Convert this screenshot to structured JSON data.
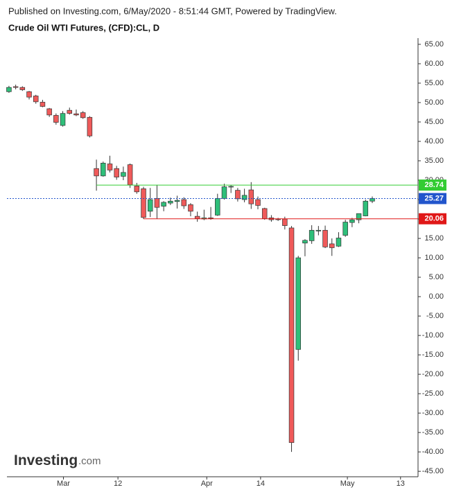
{
  "chart_data": {
    "type": "candlestick",
    "subtitle": "Published on Investing.com, 6/May/2020 - 8:51:44 GMT, Powered by TradingView.",
    "title": "Crude Oil WTI Futures, (CFD):CL, D",
    "logo_main": "Investing",
    "logo_suffix": ".com",
    "up_color": "#2fbf7a",
    "down_color": "#ef5a5a",
    "x": [
      0,
      1,
      2,
      3,
      4,
      5,
      6,
      7,
      8,
      9,
      10,
      11,
      12,
      13,
      14,
      15,
      16,
      17,
      18,
      19,
      20,
      21,
      22,
      23,
      24,
      25,
      26,
      27,
      28,
      29,
      30,
      31,
      32,
      33,
      34,
      35,
      36,
      37,
      38,
      39,
      40,
      41,
      42,
      43,
      44,
      45,
      46,
      47,
      48,
      49,
      50,
      51,
      52,
      53,
      54
    ],
    "open": [
      52.8,
      54.1,
      53.9,
      52.8,
      51.7,
      50.1,
      48.4,
      46.7,
      44.1,
      48.0,
      47.1,
      47.4,
      46.2,
      33.0,
      31.1,
      34.2,
      33.0,
      31.0,
      34.0,
      28.5,
      27.8,
      22.0,
      25.3,
      23.3,
      24.1,
      24.5,
      25.0,
      23.7,
      20.7,
      20.0,
      20.3,
      21.0,
      25.3,
      28.3,
      27.4,
      25.0,
      27.5,
      25.0,
      22.7,
      20.3,
      20.0,
      20.0,
      17.7,
      -13.6,
      13.8,
      14.4,
      16.9,
      17.1,
      13.6,
      13.0,
      15.8,
      19.1,
      19.8,
      20.8,
      24.6
    ],
    "high": [
      54.3,
      54.6,
      54.2,
      53.0,
      52.0,
      50.7,
      48.6,
      47.2,
      47.8,
      48.7,
      48.2,
      47.8,
      46.5,
      35.3,
      34.8,
      36.3,
      33.7,
      33.5,
      34.3,
      29.3,
      28.3,
      28.0,
      28.8,
      24.6,
      25.5,
      26.0,
      25.6,
      24.1,
      21.9,
      22.4,
      23.1,
      26.5,
      29.1,
      28.7,
      28.0,
      27.8,
      29.5,
      25.8,
      22.9,
      21.0,
      20.3,
      20.6,
      18.2,
      10.5,
      14.8,
      18.4,
      18.2,
      18.3,
      15.0,
      16.6,
      19.8,
      20.3,
      21.4,
      25.0,
      25.8
    ],
    "low": [
      52.5,
      53.4,
      53.0,
      50.8,
      49.7,
      48.8,
      46.3,
      44.3,
      43.8,
      46.9,
      46.5,
      45.8,
      41.0,
      27.3,
      30.9,
      32.0,
      30.1,
      30.0,
      28.0,
      26.5,
      20.0,
      20.5,
      20.0,
      22.0,
      23.6,
      22.7,
      22.6,
      20.7,
      19.3,
      19.7,
      19.8,
      20.8,
      25.0,
      26.7,
      24.5,
      24.3,
      22.6,
      22.5,
      19.8,
      19.3,
      19.5,
      17.3,
      -40.0,
      -16.5,
      10.4,
      13.6,
      15.8,
      12.5,
      10.5,
      12.8,
      15.4,
      17.9,
      18.9,
      20.7,
      24.1
    ],
    "close": [
      53.9,
      53.9,
      53.3,
      51.4,
      50.2,
      49.0,
      46.8,
      44.9,
      47.2,
      47.2,
      46.8,
      46.1,
      41.4,
      31.1,
      34.4,
      32.6,
      30.8,
      32.0,
      28.8,
      27.0,
      20.4,
      25.0,
      23.0,
      24.3,
      24.6,
      24.8,
      23.4,
      22.0,
      20.1,
      20.3,
      20.1,
      25.3,
      28.3,
      28.4,
      25.2,
      26.1,
      23.9,
      23.5,
      20.1,
      19.8,
      19.9,
      18.3,
      -37.6,
      10.0,
      14.5,
      17.1,
      17.1,
      12.8,
      12.6,
      15.1,
      19.2,
      19.8,
      21.4,
      24.6,
      25.3
    ],
    "xlim": [
      -0.3,
      60.8
    ],
    "xticks": [
      {
        "value": 8.1,
        "label": "Mar"
      },
      {
        "value": 16.2,
        "label": "12"
      },
      {
        "value": 29.4,
        "label": "Apr"
      },
      {
        "value": 37.4,
        "label": "14"
      },
      {
        "value": 50.3,
        "label": "May"
      },
      {
        "value": 58.2,
        "label": "13"
      }
    ],
    "ylim": [
      -46.4,
      66.6
    ],
    "yticks": [
      {
        "value": 65,
        "label": "65.00"
      },
      {
        "value": 60,
        "label": "60.00"
      },
      {
        "value": 55,
        "label": "55.00"
      },
      {
        "value": 50,
        "label": "50.00"
      },
      {
        "value": 45,
        "label": "45.00"
      },
      {
        "value": 40,
        "label": "40.00"
      },
      {
        "value": 35,
        "label": "35.00"
      },
      {
        "value": 30,
        "label": "30.00"
      },
      {
        "value": 25,
        "label": "25.00"
      },
      {
        "value": 20,
        "label": "20.00"
      },
      {
        "value": 15,
        "label": "15.00"
      },
      {
        "value": 10,
        "label": "10.00"
      },
      {
        "value": 5,
        "label": "5.00"
      },
      {
        "value": 0,
        "label": "0.00"
      },
      {
        "value": -5,
        "label": "-5.00"
      },
      {
        "value": -10,
        "label": "-10.00"
      },
      {
        "value": -15,
        "label": "-15.00"
      },
      {
        "value": -20,
        "label": "-20.00"
      },
      {
        "value": -25,
        "label": "-25.00"
      },
      {
        "value": -30,
        "label": "-30.00"
      },
      {
        "value": -35,
        "label": "-35.00"
      },
      {
        "value": -40,
        "label": "-40.00"
      },
      {
        "value": -45,
        "label": "-45.00"
      }
    ],
    "levels": [
      {
        "value": 28.74,
        "color": "#33cc33",
        "x_start": 13,
        "style": "solid"
      },
      {
        "value": 25.27,
        "color": "#2255cc",
        "x_start": -0.3,
        "style": "dotted"
      },
      {
        "value": 20.06,
        "color": "#e01818",
        "x_start": 20,
        "style": "solid"
      }
    ]
  }
}
